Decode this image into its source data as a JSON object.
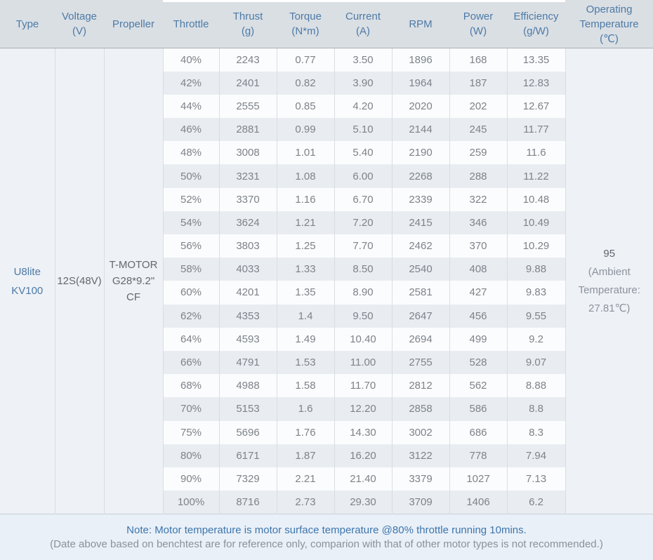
{
  "chart_data": {
    "type": "table",
    "columns": [
      {
        "label": "Type",
        "lines": [
          "Type"
        ]
      },
      {
        "label": "Voltage (V)",
        "lines": [
          "Voltage",
          "(V)"
        ]
      },
      {
        "label": "Propeller",
        "lines": [
          "Propeller"
        ]
      },
      {
        "label": "Throttle",
        "lines": [
          "Throttle"
        ]
      },
      {
        "label": "Thrust (g)",
        "lines": [
          "Thrust",
          "(g)"
        ]
      },
      {
        "label": "Torque (N*m)",
        "lines": [
          "Torque",
          "(N*m)"
        ]
      },
      {
        "label": "Current (A)",
        "lines": [
          "Current",
          "(A)"
        ]
      },
      {
        "label": "RPM",
        "lines": [
          "RPM"
        ]
      },
      {
        "label": "Power (W)",
        "lines": [
          "Power",
          "(W)"
        ]
      },
      {
        "label": "Efficiency (g/W)",
        "lines": [
          "Efficiency",
          "(g/W)"
        ]
      },
      {
        "label": "Operating Temperature (℃)",
        "lines": [
          "Operating",
          "Temperature",
          "(℃)"
        ]
      }
    ],
    "merged": {
      "type": {
        "value": "U8lite KV100",
        "lines": [
          "U8lite",
          "KV100"
        ]
      },
      "voltage": {
        "value": "12S(48V)"
      },
      "propeller": {
        "value": "T-MOTOR G28*9.2\" CF",
        "lines": [
          "T-MOTOR",
          "G28*9.2\"",
          "CF"
        ]
      },
      "operating_temperature": {
        "value": "95",
        "ambient_lines": [
          "(Ambient",
          "Temperature:",
          "27.81℃)"
        ]
      }
    },
    "rows": [
      {
        "throttle": "40%",
        "thrust": "2243",
        "torque": "0.77",
        "current": "3.50",
        "rpm": "1896",
        "power": "168",
        "efficiency": "13.35"
      },
      {
        "throttle": "42%",
        "thrust": "2401",
        "torque": "0.82",
        "current": "3.90",
        "rpm": "1964",
        "power": "187",
        "efficiency": "12.83"
      },
      {
        "throttle": "44%",
        "thrust": "2555",
        "torque": "0.85",
        "current": "4.20",
        "rpm": "2020",
        "power": "202",
        "efficiency": "12.67"
      },
      {
        "throttle": "46%",
        "thrust": "2881",
        "torque": "0.99",
        "current": "5.10",
        "rpm": "2144",
        "power": "245",
        "efficiency": "11.77"
      },
      {
        "throttle": "48%",
        "thrust": "3008",
        "torque": "1.01",
        "current": "5.40",
        "rpm": "2190",
        "power": "259",
        "efficiency": "11.6"
      },
      {
        "throttle": "50%",
        "thrust": "3231",
        "torque": "1.08",
        "current": "6.00",
        "rpm": "2268",
        "power": "288",
        "efficiency": "11.22"
      },
      {
        "throttle": "52%",
        "thrust": "3370",
        "torque": "1.16",
        "current": "6.70",
        "rpm": "2339",
        "power": "322",
        "efficiency": "10.48"
      },
      {
        "throttle": "54%",
        "thrust": "3624",
        "torque": "1.21",
        "current": "7.20",
        "rpm": "2415",
        "power": "346",
        "efficiency": "10.49"
      },
      {
        "throttle": "56%",
        "thrust": "3803",
        "torque": "1.25",
        "current": "7.70",
        "rpm": "2462",
        "power": "370",
        "efficiency": "10.29"
      },
      {
        "throttle": "58%",
        "thrust": "4033",
        "torque": "1.33",
        "current": "8.50",
        "rpm": "2540",
        "power": "408",
        "efficiency": "9.88"
      },
      {
        "throttle": "60%",
        "thrust": "4201",
        "torque": "1.35",
        "current": "8.90",
        "rpm": "2581",
        "power": "427",
        "efficiency": "9.83"
      },
      {
        "throttle": "62%",
        "thrust": "4353",
        "torque": "1.4",
        "current": "9.50",
        "rpm": "2647",
        "power": "456",
        "efficiency": "9.55"
      },
      {
        "throttle": "64%",
        "thrust": "4593",
        "torque": "1.49",
        "current": "10.40",
        "rpm": "2694",
        "power": "499",
        "efficiency": "9.2"
      },
      {
        "throttle": "66%",
        "thrust": "4791",
        "torque": "1.53",
        "current": "11.00",
        "rpm": "2755",
        "power": "528",
        "efficiency": "9.07"
      },
      {
        "throttle": "68%",
        "thrust": "4988",
        "torque": "1.58",
        "current": "11.70",
        "rpm": "2812",
        "power": "562",
        "efficiency": "8.88"
      },
      {
        "throttle": "70%",
        "thrust": "5153",
        "torque": "1.6",
        "current": "12.20",
        "rpm": "2858",
        "power": "586",
        "efficiency": "8.8"
      },
      {
        "throttle": "75%",
        "thrust": "5696",
        "torque": "1.76",
        "current": "14.30",
        "rpm": "3002",
        "power": "686",
        "efficiency": "8.3"
      },
      {
        "throttle": "80%",
        "thrust": "6171",
        "torque": "1.87",
        "current": "16.20",
        "rpm": "3122",
        "power": "778",
        "efficiency": "7.94"
      },
      {
        "throttle": "90%",
        "thrust": "7329",
        "torque": "2.21",
        "current": "21.40",
        "rpm": "3379",
        "power": "1027",
        "efficiency": "7.13"
      },
      {
        "throttle": "100%",
        "thrust": "8716",
        "torque": "2.73",
        "current": "29.30",
        "rpm": "3709",
        "power": "1406",
        "efficiency": "6.2"
      }
    ]
  },
  "notes": {
    "line1": "Note: Motor temperature is motor surface temperature @80% throttle running 10mins.",
    "line2": "(Date above based on benchtest are for reference only, comparion with that of other motor types is not recommended.)"
  },
  "colors": {
    "page_bg": "#e9f0f8",
    "header_bg": "#dadfe4",
    "header_text": "#4d7aa6",
    "row_odd_bg": "#fbfcfd",
    "row_even_bg": "#e9edf2",
    "merged_cell_bg": "#eef1f6",
    "body_text": "#7d838a",
    "type_text": "#4d7aa6",
    "note_blue": "#3e75ac",
    "note_gray": "#8a9199"
  }
}
